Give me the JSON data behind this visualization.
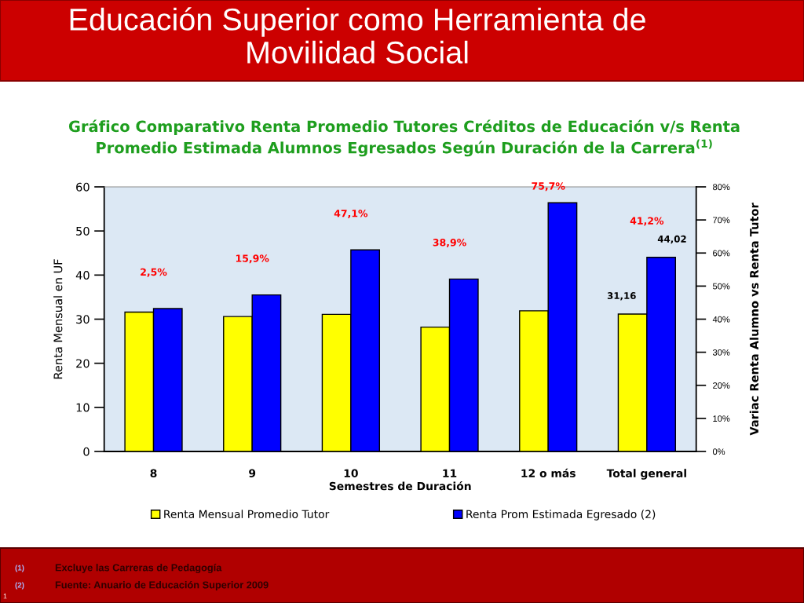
{
  "chart_data": {
    "type": "bar",
    "title": "Educación Superior como Herramienta de\nMovilidad Social",
    "subtitle": "Gráfico Comparativo Renta Promedio Tutores Créditos de Educación v/s Renta\nPromedio Estimada Alumnos Egresados Según Duración de la Carrera$^{(1)}$",
    "xlabel": "Semestres de Duración",
    "ylabel": "Renta Mensual en UF",
    "y2label": "Variac Renta Alumno vs Renta Tutor",
    "categories": [
      "8",
      "9",
      "10",
      "11",
      "12 o más",
      "Total general"
    ],
    "series": [
      {
        "name": "Renta Mensual Promedio Tutor",
        "color": "#ffff00",
        "values": [
          31.6,
          30.6,
          31.1,
          28.2,
          31.9,
          31.16
        ],
        "value_labels": [
          null,
          null,
          null,
          null,
          null,
          "31,16"
        ]
      },
      {
        "name": "Renta Prom Estimada Egresado (2)",
        "color": "#0000ff",
        "values": [
          32.4,
          35.5,
          45.7,
          39.1,
          56.4,
          44.02
        ],
        "value_labels": [
          null,
          null,
          null,
          null,
          null,
          "44,02"
        ]
      }
    ],
    "ylim": [
      0,
      60
    ],
    "yticks": [
      0,
      10,
      20,
      30,
      40,
      50,
      60
    ],
    "y2lim": [
      0,
      80
    ],
    "y2ticks": [
      {
        "value": 0,
        "label": "0%"
      },
      {
        "value": 10,
        "label": "10%"
      },
      {
        "value": 20,
        "label": "20%"
      },
      {
        "value": 30,
        "label": "30%"
      },
      {
        "value": 40,
        "label": "40%"
      },
      {
        "value": 50,
        "label": "50%"
      },
      {
        "value": 60,
        "label": "60%"
      },
      {
        "value": 70,
        "label": "70%"
      },
      {
        "value": 80,
        "label": "80%"
      }
    ],
    "grid": false,
    "legend": "bottom",
    "annotations": [
      "2,5%",
      "15,9%",
      "47,1%",
      "38,9%",
      "75,7%",
      "41,2%",
      "(1)",
      "Excluye las Carreras de Pedagogía",
      "(2)",
      "Fuente: Anuario de Educación Superior 2009",
      "1"
    ]
  }
}
